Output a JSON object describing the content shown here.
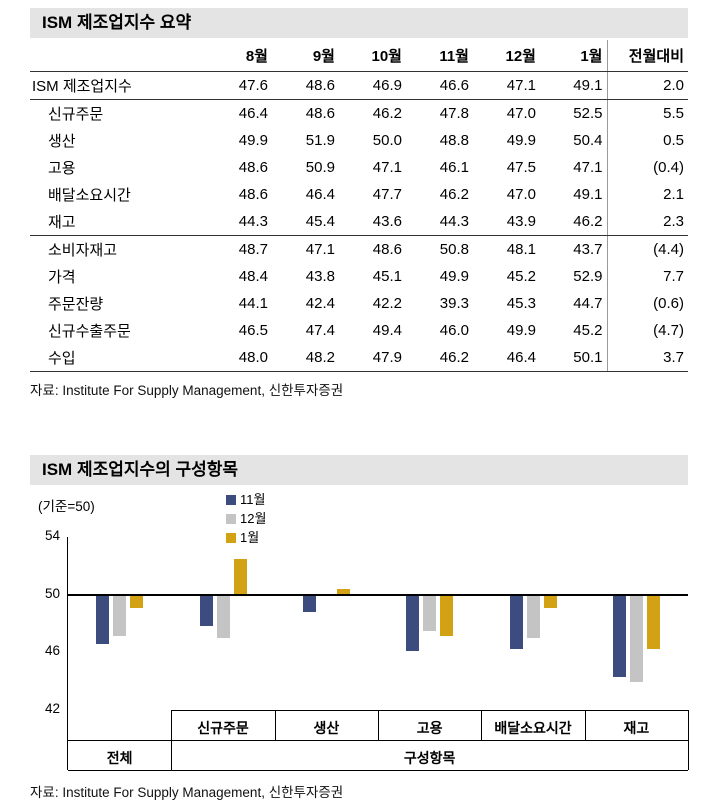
{
  "colors": {
    "title_bar_bg": "#e4e4e4",
    "series_nov": "#3d4c7e",
    "series_dec": "#c4c4c4",
    "series_jan": "#d3a114"
  },
  "sources": {
    "summary": "자료: Institute For Supply Management, 신한투자증권",
    "components": "자료: Institute For Supply Management, 신한투자증권"
  },
  "chart_data": [
    {
      "type": "table",
      "title": "ISM 제조업지수 요약",
      "columns": [
        "8월",
        "9월",
        "10월",
        "11월",
        "12월",
        "1월",
        "전월대비"
      ],
      "rows": [
        {
          "label": "ISM 제조업지수",
          "indent": false,
          "values": [
            "47.6",
            "48.6",
            "46.9",
            "46.6",
            "47.1",
            "49.1",
            "2.0"
          ]
        },
        {
          "label": "신규주문",
          "indent": true,
          "values": [
            "46.4",
            "48.6",
            "46.2",
            "47.8",
            "47.0",
            "52.5",
            "5.5"
          ]
        },
        {
          "label": "생산",
          "indent": true,
          "values": [
            "49.9",
            "51.9",
            "50.0",
            "48.8",
            "49.9",
            "50.4",
            "0.5"
          ]
        },
        {
          "label": "고용",
          "indent": true,
          "values": [
            "48.6",
            "50.9",
            "47.1",
            "46.1",
            "47.5",
            "47.1",
            "(0.4)"
          ]
        },
        {
          "label": "배달소요시간",
          "indent": true,
          "values": [
            "48.6",
            "46.4",
            "47.7",
            "46.2",
            "47.0",
            "49.1",
            "2.1"
          ]
        },
        {
          "label": "재고",
          "indent": true,
          "values": [
            "44.3",
            "45.4",
            "43.6",
            "44.3",
            "43.9",
            "46.2",
            "2.3"
          ]
        },
        {
          "label": "소비자재고",
          "indent": true,
          "values": [
            "48.7",
            "47.1",
            "48.6",
            "50.8",
            "48.1",
            "43.7",
            "(4.4)"
          ]
        },
        {
          "label": "가격",
          "indent": true,
          "values": [
            "48.4",
            "43.8",
            "45.1",
            "49.9",
            "45.2",
            "52.9",
            "7.7"
          ]
        },
        {
          "label": "주문잔량",
          "indent": true,
          "values": [
            "44.1",
            "42.4",
            "42.2",
            "39.3",
            "45.3",
            "44.7",
            "(0.6)"
          ]
        },
        {
          "label": "신규수출주문",
          "indent": true,
          "values": [
            "46.5",
            "47.4",
            "49.4",
            "46.0",
            "49.9",
            "45.2",
            "(4.7)"
          ]
        },
        {
          "label": "수입",
          "indent": true,
          "values": [
            "48.0",
            "48.2",
            "47.9",
            "46.2",
            "46.4",
            "50.1",
            "3.7"
          ]
        }
      ]
    },
    {
      "type": "bar",
      "title": "ISM 제조업지수의 구성항목",
      "categories": [
        "전체",
        "신규주문",
        "생산",
        "고용",
        "배달소요시간",
        "재고"
      ],
      "series": [
        {
          "name": "11월",
          "color": "#3d4c7e",
          "values": [
            46.6,
            47.8,
            48.8,
            46.1,
            46.2,
            44.3
          ]
        },
        {
          "name": "12월",
          "color": "#c4c4c4",
          "values": [
            47.1,
            47.0,
            49.9,
            47.5,
            47.0,
            43.9
          ]
        },
        {
          "name": "1월",
          "color": "#d3a114",
          "values": [
            49.1,
            52.5,
            50.4,
            47.1,
            49.1,
            46.2
          ]
        }
      ],
      "baseline": 50,
      "ylim": [
        42,
        54
      ],
      "yticks": [
        54,
        50,
        46,
        42
      ],
      "axis_note": "(기준=50)",
      "group_label": "구성항목",
      "legend_position": "top-left",
      "grid": false
    }
  ]
}
